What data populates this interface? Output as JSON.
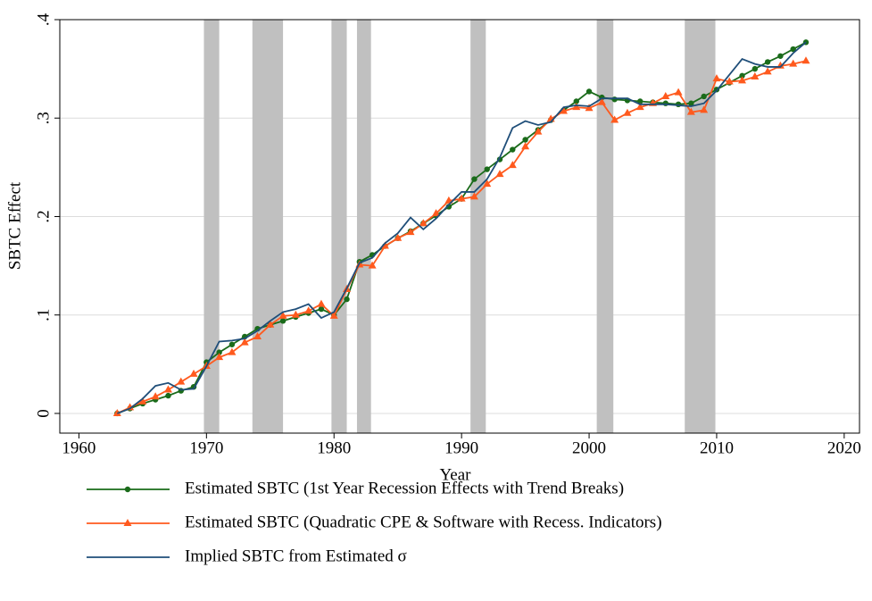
{
  "chart_data": {
    "type": "line",
    "xlabel": "Year",
    "ylabel": "SBTC Effect",
    "x": [
      1963,
      1964,
      1965,
      1966,
      1967,
      1968,
      1969,
      1970,
      1971,
      1972,
      1973,
      1974,
      1975,
      1976,
      1977,
      1978,
      1979,
      1980,
      1981,
      1982,
      1983,
      1984,
      1985,
      1986,
      1987,
      1988,
      1989,
      1990,
      1991,
      1992,
      1993,
      1994,
      1995,
      1996,
      1997,
      1998,
      1999,
      2000,
      2001,
      2002,
      2003,
      2004,
      2005,
      2006,
      2007,
      2008,
      2009,
      2010,
      2011,
      2012,
      2013,
      2014,
      2015,
      2016,
      2017
    ],
    "series": [
      {
        "name": "Estimated SBTC (1st Year Recession Effects with Trend Breaks)",
        "color": "#1a6b1a",
        "marker": "circle",
        "values": [
          0,
          0.005,
          0.01,
          0.014,
          0.018,
          0.023,
          0.027,
          0.052,
          0.062,
          0.07,
          0.078,
          0.086,
          0.09,
          0.094,
          0.098,
          0.102,
          0.106,
          0.1,
          0.116,
          0.154,
          0.161,
          0.17,
          0.178,
          0.185,
          0.193,
          0.201,
          0.21,
          0.218,
          0.238,
          0.248,
          0.258,
          0.268,
          0.278,
          0.288,
          0.298,
          0.308,
          0.317,
          0.327,
          0.321,
          0.319,
          0.318,
          0.317,
          0.316,
          0.315,
          0.314,
          0.315,
          0.322,
          0.329,
          0.336,
          0.343,
          0.35,
          0.357,
          0.363,
          0.37,
          0.377
        ]
      },
      {
        "name": "Estimated SBTC (Quadratic CPE & Software with Recess. Indicators)",
        "color": "#ff5a1e",
        "marker": "triangle",
        "values": [
          0,
          0.006,
          0.012,
          0.017,
          0.024,
          0.032,
          0.04,
          0.048,
          0.057,
          0.062,
          0.072,
          0.078,
          0.09,
          0.099,
          0.1,
          0.104,
          0.111,
          0.099,
          0.126,
          0.151,
          0.15,
          0.17,
          0.178,
          0.184,
          0.193,
          0.203,
          0.216,
          0.218,
          0.22,
          0.233,
          0.243,
          0.252,
          0.271,
          0.286,
          0.299,
          0.307,
          0.311,
          0.31,
          0.316,
          0.298,
          0.305,
          0.311,
          0.315,
          0.322,
          0.326,
          0.306,
          0.308,
          0.34,
          0.337,
          0.338,
          0.342,
          0.347,
          0.353,
          0.355,
          0.358
        ]
      },
      {
        "name": "Implied SBTC from Estimated σ",
        "color": "#1f4e79",
        "marker": "none",
        "values": [
          0,
          0.005,
          0.015,
          0.028,
          0.031,
          0.024,
          0.025,
          0.048,
          0.073,
          0.074,
          0.076,
          0.084,
          0.094,
          0.103,
          0.106,
          0.111,
          0.097,
          0.103,
          0.127,
          0.153,
          0.158,
          0.173,
          0.183,
          0.199,
          0.187,
          0.198,
          0.212,
          0.225,
          0.225,
          0.238,
          0.26,
          0.29,
          0.297,
          0.293,
          0.296,
          0.311,
          0.313,
          0.312,
          0.32,
          0.32,
          0.32,
          0.314,
          0.314,
          0.314,
          0.313,
          0.312,
          0.315,
          0.328,
          0.344,
          0.36,
          0.355,
          0.352,
          0.352,
          0.366,
          0.377
        ]
      }
    ],
    "shaded_regions": [
      [
        1969.8,
        1971.0
      ],
      [
        1973.6,
        1976.0
      ],
      [
        1979.8,
        1981.0
      ],
      [
        1981.8,
        1982.9
      ],
      [
        1990.7,
        1991.9
      ],
      [
        2000.6,
        2001.9
      ],
      [
        2007.5,
        2009.9
      ]
    ],
    "shade_color": "#c0c0c0",
    "xlim": [
      1958.5,
      2021.2
    ],
    "xticks": [
      1960,
      1970,
      1980,
      1990,
      2000,
      2010,
      2020
    ],
    "ylim": [
      -0.02,
      0.4
    ],
    "yticks": [
      0,
      {
        "value": 0.1,
        "label": ".1"
      },
      {
        "value": 0.2,
        "label": ".2"
      },
      {
        "value": 0.3,
        "label": ".3"
      },
      {
        "value": 0.4,
        "label": ".4"
      }
    ],
    "grid": true
  }
}
